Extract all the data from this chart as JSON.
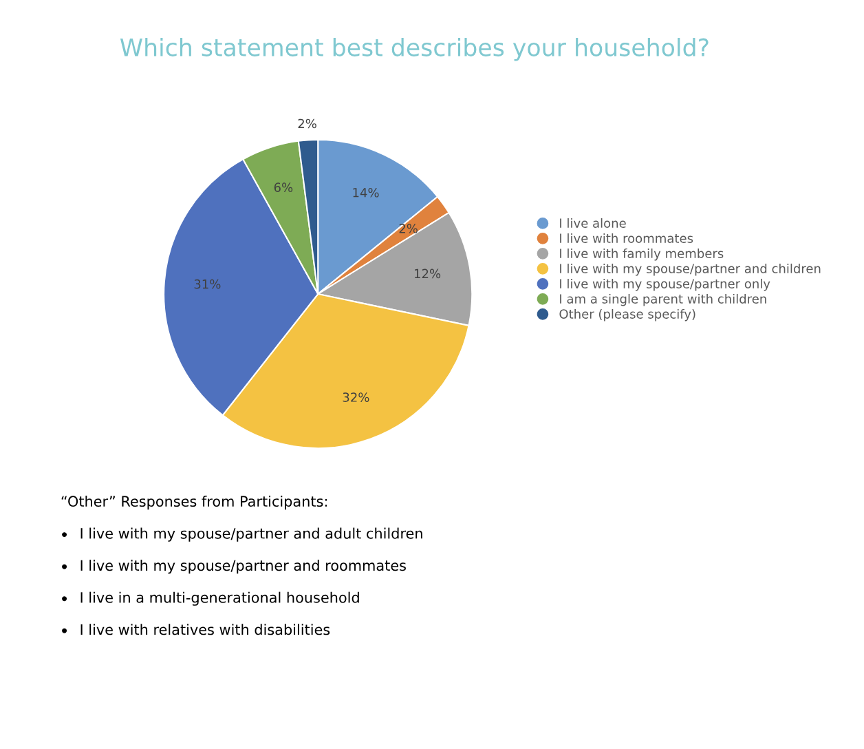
{
  "chart_data": {
    "type": "pie",
    "title": "Which statement best describes your household?",
    "categories": [
      "I live alone",
      "I live with roommates",
      "I live with family members",
      "I live with my spouse/partner and children",
      "I live with my spouse/partner only",
      "I am a single parent with children",
      "Other (please specify)"
    ],
    "values": [
      14,
      2,
      12,
      32,
      31,
      6,
      2
    ],
    "value_labels": [
      "14%",
      "2%",
      "12%",
      "32%",
      "31%",
      "6%",
      "2%"
    ],
    "colors": [
      "#6a9ad0",
      "#e0823d",
      "#a5a5a5",
      "#f4c242",
      "#4f71be",
      "#7eab55",
      "#2f5b8e"
    ],
    "legend": "right",
    "annotations": [
      "“Other” Responses from Participants:",
      "I live with my spouse/partner and adult children",
      "I live with my spouse/partner and roommates",
      "I live in a multi-generational household",
      "I live with relatives with disabilities"
    ]
  }
}
